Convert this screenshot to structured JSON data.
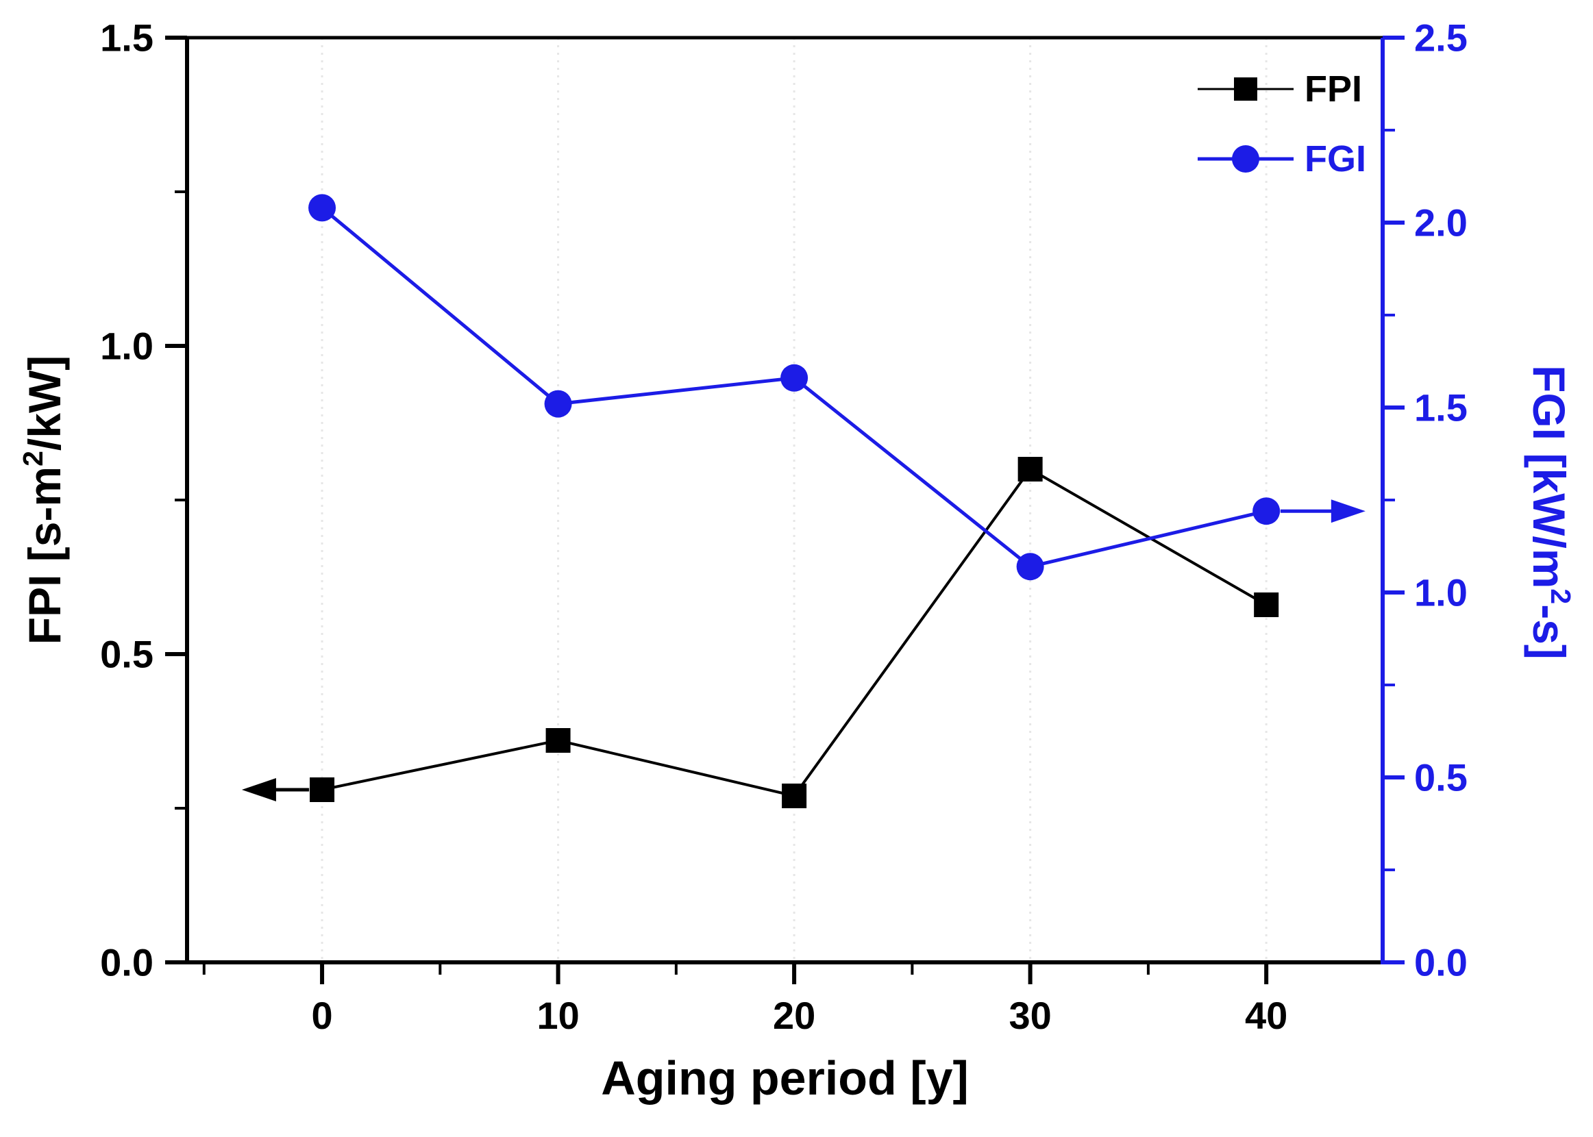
{
  "figure": {
    "description": "Dual-axis line chart of FPI and FGI versus aging period"
  },
  "chart_data": {
    "type": "line",
    "title": "",
    "x": [
      0,
      10,
      20,
      30,
      40
    ],
    "series": [
      {
        "name": "FPI",
        "axis": "left",
        "color": "#000000",
        "marker": "square",
        "line_width": 4,
        "values": [
          0.28,
          0.36,
          0.27,
          0.8,
          0.58
        ]
      },
      {
        "name": "FGI",
        "axis": "right",
        "color": "#1c1ce6",
        "marker": "circle",
        "line_width": 5,
        "values": [
          2.04,
          1.51,
          1.58,
          1.07,
          1.22
        ]
      }
    ],
    "x_axis": {
      "label_parts": [
        {
          "t": "Aging period [y]"
        }
      ],
      "ticks": [
        0,
        10,
        20,
        30,
        40
      ],
      "tick_labels": [
        "0",
        "10",
        "20",
        "30",
        "40"
      ],
      "minor_ticks": [
        -5,
        5,
        15,
        25,
        35
      ],
      "range": [
        -5.72,
        44.93
      ],
      "grid": true
    },
    "y_left": {
      "label_parts": [
        {
          "t": "FPI [s-m"
        },
        {
          "t": "2",
          "sup": true
        },
        {
          "t": "/kW]"
        }
      ],
      "color": "#000000",
      "ticks": [
        0,
        0.5,
        1,
        1.5
      ],
      "tick_labels": [
        "0.0",
        "0.5",
        "1.0",
        "1.5"
      ],
      "minor_ticks": [
        0.25,
        0.75,
        1.25
      ],
      "range": [
        0,
        1.5
      ]
    },
    "y_right": {
      "label_parts": [
        {
          "t": "FGI [kW/m"
        },
        {
          "t": "2",
          "sup": true
        },
        {
          "t": "-s]"
        }
      ],
      "color": "#1c1ce6",
      "ticks": [
        0,
        0.5,
        1,
        1.5,
        2,
        2.5
      ],
      "tick_labels": [
        "0.0",
        "0.5",
        "1.0",
        "1.5",
        "2.0",
        "2.5"
      ],
      "minor_ticks": [
        0.25,
        0.75,
        1.25,
        1.75,
        2.25
      ],
      "range": [
        0,
        2.5
      ]
    },
    "legend": {
      "position": "top-right",
      "entries": [
        {
          "label": "FPI"
        },
        {
          "label": "FGI"
        }
      ]
    },
    "annotations": [
      {
        "type": "axis-arrow",
        "axis": "left",
        "series": "FPI",
        "y": 0.28,
        "from_x": -0.55,
        "to_x": -3.4,
        "color": "#000000"
      },
      {
        "type": "axis-arrow",
        "axis": "right",
        "series": "FGI",
        "y": 1.22,
        "from_x": 40.6,
        "to_x": 44.2,
        "color": "#1c1ce6"
      }
    ],
    "style": {
      "background": "#ffffff",
      "grid_color": "#e6e6e6",
      "axis_color": "#000000",
      "right_axis_color": "#1c1ce6"
    }
  }
}
